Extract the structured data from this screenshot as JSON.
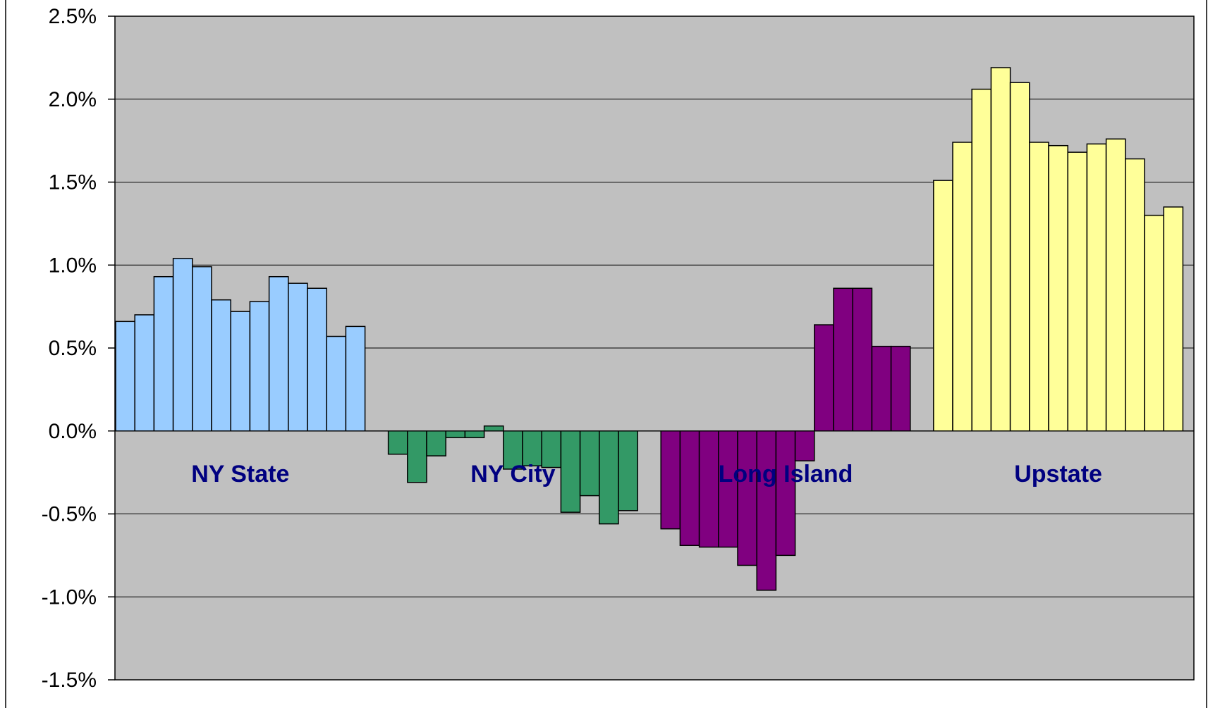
{
  "chart_data": {
    "type": "bar",
    "title": "",
    "xlabel": "",
    "ylabel": "",
    "ylim": [
      -0.015,
      0.025
    ],
    "yticks": [
      0.025,
      0.02,
      0.015,
      0.01,
      0.005,
      0.0,
      -0.005,
      -0.01,
      -0.015
    ],
    "ytick_labels": [
      "2.5%",
      "2.0%",
      "1.5%",
      "1.0%",
      "0.5%",
      "0.0%",
      "-0.5%",
      "-1.0%",
      "-1.5%"
    ],
    "grid": true,
    "plot_background": "#c0c0c0",
    "label_color": "#000080",
    "series": [
      {
        "name": "NY State",
        "color": "#99ccff",
        "values": [
          0.0066,
          0.007,
          0.0093,
          0.0104,
          0.0099,
          0.0079,
          0.0072,
          0.0078,
          0.0093,
          0.0089,
          0.0086,
          0.0057,
          0.0063
        ]
      },
      {
        "name": "NY City",
        "color": "#339966",
        "values": [
          -0.0014,
          -0.0031,
          -0.0015,
          -0.0004,
          -0.0004,
          0.0003,
          -0.0023,
          -0.0021,
          -0.0022,
          -0.0049,
          -0.0039,
          -0.0056,
          -0.0048
        ]
      },
      {
        "name": "Long Island",
        "color": "#800080",
        "values": [
          -0.0059,
          -0.0069,
          -0.007,
          -0.007,
          -0.0081,
          -0.0096,
          -0.0075,
          -0.0018,
          0.0064,
          0.0086,
          0.0086,
          0.0051,
          0.0051
        ]
      },
      {
        "name": "Upstate",
        "color": "#ffff99",
        "values": [
          0.0151,
          0.0174,
          0.0206,
          0.0219,
          0.021,
          0.0174,
          0.0172,
          0.0168,
          0.0173,
          0.0176,
          0.0164,
          0.013,
          0.0135
        ]
      }
    ]
  }
}
